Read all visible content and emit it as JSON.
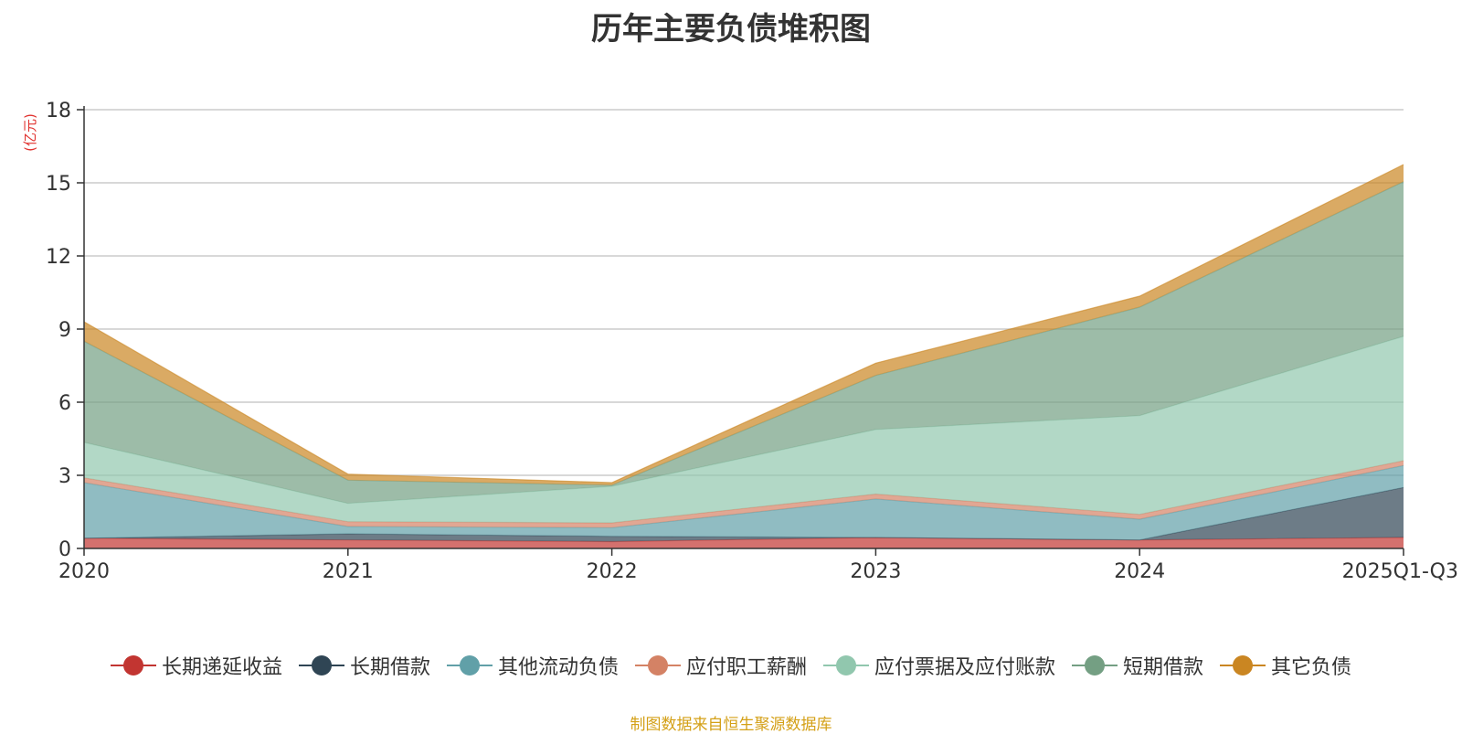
{
  "chart_data": {
    "type": "area",
    "stacked": true,
    "title": "历年主要负债堆积图",
    "y_unit": "(亿元)",
    "categories": [
      "2020",
      "2021",
      "2022",
      "2023",
      "2024",
      "2025Q1-Q3"
    ],
    "ylim": [
      0,
      18
    ],
    "yticks": [
      0,
      3,
      6,
      9,
      12,
      15,
      18
    ],
    "grid": true,
    "legend_position": "bottom",
    "series": [
      {
        "name": "长期递延收益",
        "color": "#c23531",
        "values": [
          0.42,
          0.35,
          0.28,
          0.45,
          0.35,
          0.45
        ]
      },
      {
        "name": "长期借款",
        "color": "#2f4554",
        "values": [
          0.0,
          0.25,
          0.22,
          0.0,
          0.0,
          2.05
        ]
      },
      {
        "name": "其他流动负债",
        "color": "#61a0a8",
        "values": [
          2.28,
          0.3,
          0.35,
          1.58,
          0.85,
          0.9
        ]
      },
      {
        "name": "应付职工薪酬",
        "color": "#d48265",
        "values": [
          0.2,
          0.2,
          0.2,
          0.2,
          0.2,
          0.2
        ]
      },
      {
        "name": "应付票据及应付账款",
        "color": "#91c7ae",
        "values": [
          1.45,
          0.75,
          1.5,
          2.65,
          4.05,
          5.1
        ]
      },
      {
        "name": "短期借款",
        "color": "#749f83",
        "values": [
          4.15,
          0.95,
          0.05,
          2.22,
          4.45,
          6.35
        ]
      },
      {
        "name": "其它负债",
        "color": "#ca8622",
        "values": [
          0.8,
          0.25,
          0.1,
          0.5,
          0.45,
          0.7
        ]
      }
    ]
  },
  "footer": {
    "source_text": "制图数据来自恒生聚源数据库",
    "source_color": "#d4a017"
  }
}
